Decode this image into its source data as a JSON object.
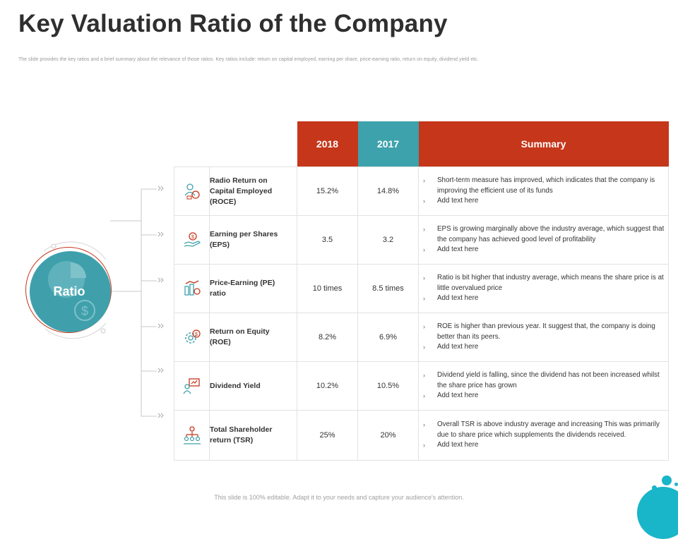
{
  "title": "Key Valuation Ratio of the Company",
  "subtitle": "The slide provides the key ratios and a brief summary about the relevance of those ratios. Key ratios include: return on capital employed, earning per share, price-earning ratio, return on equity, dividend yield etc.",
  "hub": {
    "label": "Ratio"
  },
  "colors": {
    "red": "#c5361a",
    "teal": "#3ea2ac",
    "cyan": "#19b5c9"
  },
  "table": {
    "headers": {
      "y2018": "2018",
      "y2017": "2017",
      "summary": "Summary"
    },
    "rows": [
      {
        "icon": "roce-icon",
        "name": "Radio Return on Capital Employed (ROCE)",
        "v2018": "15.2%",
        "v2017": "14.8%",
        "summary": [
          "Short-term measure has improved, which indicates that the company is improving the efficient use of its funds",
          "Add text here"
        ]
      },
      {
        "icon": "eps-icon",
        "name": "Earning per Shares (EPS)",
        "v2018": "3.5",
        "v2017": "3.2",
        "summary": [
          "EPS is growing marginally above the industry average, which suggest that the company has achieved good level of profitability",
          "Add text here"
        ]
      },
      {
        "icon": "pe-icon",
        "name": "Price-Earning (PE) ratio",
        "v2018": "10 times",
        "v2017": "8.5 times",
        "summary": [
          "Ratio is bit higher that industry average, which means the share price is at little overvalued price",
          "Add text here"
        ]
      },
      {
        "icon": "roe-icon",
        "name": "Return on Equity (ROE)",
        "v2018": "8.2%",
        "v2017": "6.9%",
        "summary": [
          "ROE is higher than previous year. It suggest that, the company is doing better than its peers.",
          "Add text here"
        ]
      },
      {
        "icon": "dividend-icon",
        "name": "Dividend Yield",
        "v2018": "10.2%",
        "v2017": "10.5%",
        "summary": [
          "Dividend yield is falling, since the dividend has not been increased whilst the share price has grown",
          "Add text here"
        ]
      },
      {
        "icon": "tsr-icon",
        "name": "Total Shareholder return (TSR)",
        "v2018": "25%",
        "v2017": "20%",
        "summary": [
          "Overall TSR is above industry average and increasing This was primarily due to share price which supplements the dividends received.",
          "Add text here"
        ]
      }
    ]
  },
  "footer": "This slide is 100% editable. Adapt it to your needs and capture your audience's attention."
}
